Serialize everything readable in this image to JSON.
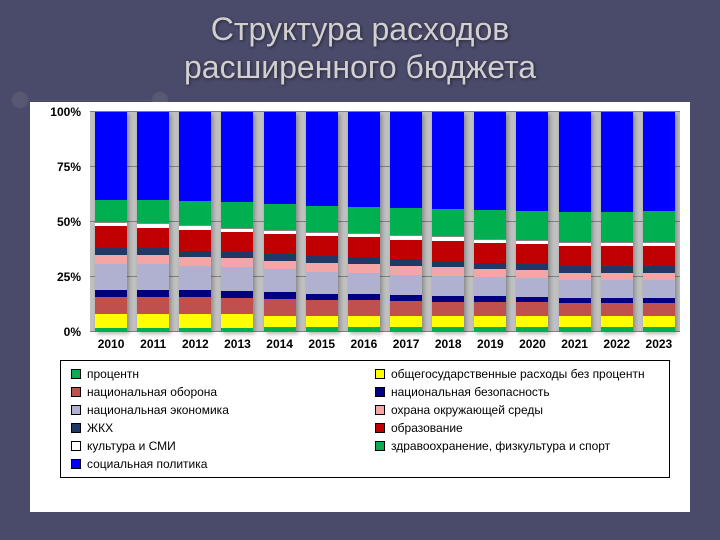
{
  "title_line1": "Структура расходов",
  "title_line2": "расширенного бюджета",
  "chart": {
    "type": "stacked-bar-100",
    "background_color": "#ffffff",
    "plot_background": "#c0c0c0",
    "grid_color": "#808080",
    "categories": [
      "2010",
      "2011",
      "2012",
      "2013",
      "2014",
      "2015",
      "2016",
      "2017",
      "2018",
      "2019",
      "2020",
      "2021",
      "2022",
      "2023"
    ],
    "y_ticks": [
      "0%",
      "25%",
      "50%",
      "75%",
      "100%"
    ],
    "y_tick_positions_pct": [
      0,
      25,
      50,
      75,
      100
    ],
    "series": [
      {
        "key": "interest",
        "label": "процентн",
        "color": "#00b050"
      },
      {
        "key": "gov_ex_interest",
        "label": "общегосударственные расходы без процентн",
        "color": "#ffff00"
      },
      {
        "key": "defense",
        "label": "национальная оборона",
        "color": "#c0504d"
      },
      {
        "key": "security",
        "label": "национальная безопасность",
        "color": "#000080"
      },
      {
        "key": "economy",
        "label": "национальная экономика",
        "color": "#b0b0d0"
      },
      {
        "key": "environment",
        "label": "охрана окружающей среды",
        "color": "#f4a6a6"
      },
      {
        "key": "housing",
        "label": "ЖКХ",
        "color": "#1f3864"
      },
      {
        "key": "education",
        "label": "образование",
        "color": "#c00000"
      },
      {
        "key": "culture",
        "label": "культура и СМИ",
        "color": "#ffffff"
      },
      {
        "key": "health_sport",
        "label": "здравоохранение, физкультура и спорт",
        "color": "#00b050"
      },
      {
        "key": "social",
        "label": "социальная политика",
        "color": "#0000ff"
      }
    ],
    "stacks": [
      [
        2.0,
        6.0,
        8.0,
        3.0,
        12.0,
        4.0,
        3.0,
        10.0,
        2.0,
        10.0,
        40.0
      ],
      [
        2.0,
        6.0,
        8.0,
        3.0,
        12.0,
        4.0,
        3.0,
        9.5,
        2.0,
        10.5,
        40.0
      ],
      [
        2.0,
        6.0,
        8.0,
        3.0,
        11.0,
        4.0,
        3.0,
        9.5,
        2.0,
        11.0,
        40.5
      ],
      [
        2.0,
        6.0,
        7.5,
        3.0,
        11.0,
        4.0,
        3.0,
        9.0,
        2.0,
        11.5,
        41.0
      ],
      [
        2.5,
        5.0,
        7.5,
        3.0,
        10.5,
        4.0,
        3.0,
        9.0,
        2.0,
        11.5,
        42.0
      ],
      [
        2.5,
        5.0,
        7.0,
        3.0,
        10.0,
        4.0,
        3.0,
        9.0,
        2.0,
        12.0,
        42.5
      ],
      [
        2.5,
        5.0,
        7.0,
        3.0,
        9.5,
        4.0,
        3.0,
        9.0,
        2.0,
        12.0,
        43.0
      ],
      [
        2.5,
        5.0,
        6.5,
        3.0,
        9.0,
        4.0,
        3.0,
        9.0,
        2.0,
        12.5,
        43.5
      ],
      [
        2.5,
        5.0,
        6.0,
        3.0,
        9.0,
        4.0,
        3.0,
        9.0,
        2.0,
        12.5,
        44.0
      ],
      [
        2.5,
        5.0,
        6.0,
        3.0,
        8.5,
        3.5,
        3.0,
        9.0,
        2.0,
        13.0,
        44.5
      ],
      [
        2.5,
        5.0,
        6.0,
        2.5,
        8.5,
        3.5,
        3.0,
        9.0,
        2.0,
        13.0,
        45.0
      ],
      [
        2.5,
        5.0,
        5.5,
        2.5,
        8.0,
        3.5,
        3.0,
        9.0,
        2.0,
        13.5,
        45.5
      ],
      [
        2.5,
        5.0,
        5.5,
        2.5,
        8.0,
        3.5,
        3.0,
        9.0,
        2.0,
        13.5,
        45.5
      ],
      [
        2.5,
        5.0,
        5.5,
        2.5,
        8.0,
        3.5,
        3.0,
        9.0,
        2.0,
        14.0,
        45.0
      ]
    ]
  },
  "slide_background": "#4a4a6a",
  "title_color": "#d0d0d0",
  "title_fontsize": 32
}
